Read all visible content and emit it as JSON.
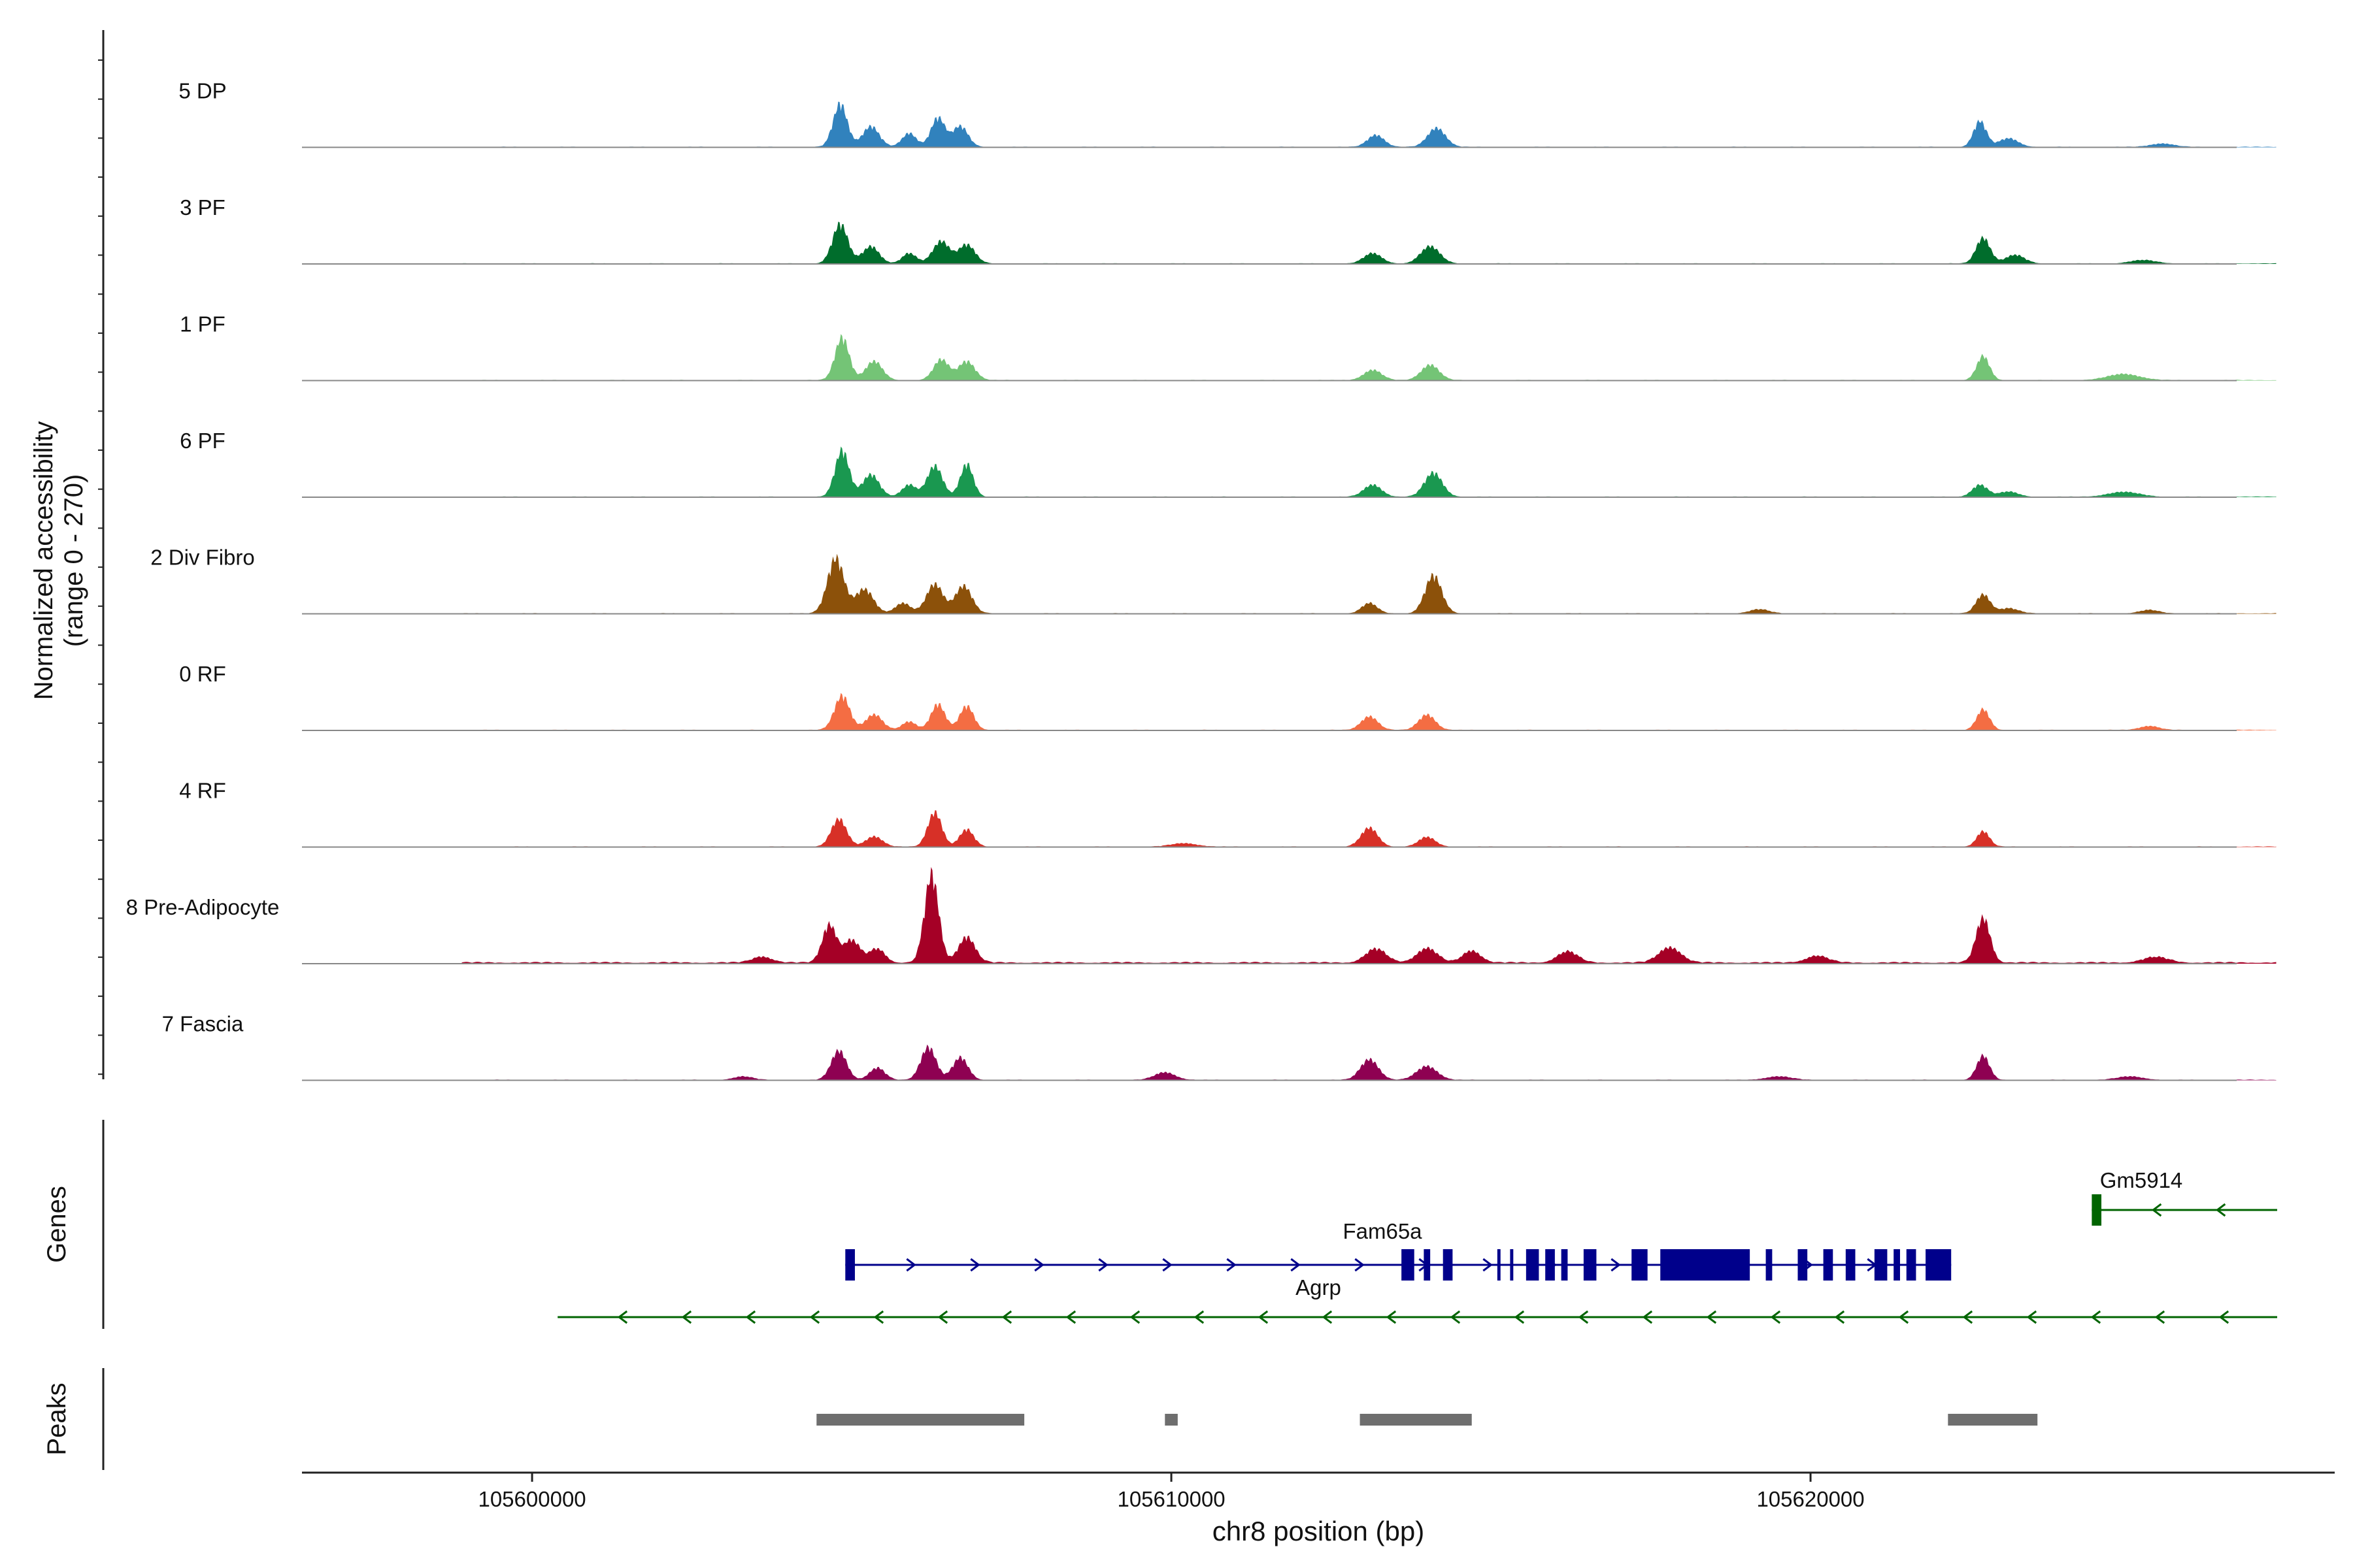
{
  "chart_data": {
    "type": "area",
    "title": "",
    "xlabel": "chr8 position (bp)",
    "ylabel_line1": "Normalized accessibility",
    "ylabel_line2": "(range 0 - 270)",
    "ylim": [
      0,
      270
    ],
    "xlim": [
      105596400,
      105628200
    ],
    "x_ticks": [
      105600000,
      105610000,
      105620000
    ],
    "x_tick_labels": [
      "105600000",
      "105610000",
      "105620000"
    ],
    "region_start": 105598900,
    "region_end": 105627300,
    "tracks": [
      {
        "name": "5 DP",
        "color": "#3182BD",
        "background": 2,
        "peaks": [
          [
            105604820,
            125,
            110
          ],
          [
            105605300,
            60,
            130
          ],
          [
            105605900,
            40,
            110
          ],
          [
            105606350,
            85,
            110
          ],
          [
            105606700,
            60,
            120
          ],
          [
            105613200,
            35,
            130
          ],
          [
            105614150,
            55,
            140
          ],
          [
            105622650,
            75,
            100
          ],
          [
            105623100,
            25,
            150
          ],
          [
            105625500,
            10,
            180
          ]
        ]
      },
      {
        "name": "3 PF",
        "color": "#006D2C",
        "background": 2,
        "peaks": [
          [
            105604820,
            115,
            120
          ],
          [
            105605300,
            50,
            130
          ],
          [
            105605900,
            30,
            110
          ],
          [
            105606400,
            65,
            130
          ],
          [
            105606800,
            55,
            130
          ],
          [
            105613150,
            30,
            140
          ],
          [
            105614050,
            50,
            150
          ],
          [
            105622700,
            75,
            110
          ],
          [
            105623200,
            25,
            150
          ],
          [
            105625200,
            10,
            200
          ]
        ]
      },
      {
        "name": "1 PF",
        "color": "#74C476",
        "background": 2,
        "peaks": [
          [
            105604850,
            125,
            110
          ],
          [
            105605350,
            55,
            130
          ],
          [
            105606400,
            60,
            120
          ],
          [
            105606800,
            55,
            130
          ],
          [
            105613150,
            30,
            140
          ],
          [
            105614050,
            45,
            140
          ],
          [
            105622700,
            70,
            100
          ],
          [
            105624900,
            18,
            250
          ]
        ]
      },
      {
        "name": "6 PF",
        "color": "#1A9850",
        "background": 2,
        "peaks": [
          [
            105604850,
            135,
            110
          ],
          [
            105605300,
            65,
            130
          ],
          [
            105605900,
            35,
            110
          ],
          [
            105606300,
            90,
            120
          ],
          [
            105606800,
            95,
            100
          ],
          [
            105613150,
            35,
            140
          ],
          [
            105614100,
            70,
            140
          ],
          [
            105622650,
            35,
            120
          ],
          [
            105623100,
            15,
            150
          ],
          [
            105624900,
            14,
            250
          ]
        ]
      },
      {
        "name": "2 Div Fibro",
        "color": "#8C510A",
        "background": 2,
        "peaks": [
          [
            105604750,
            160,
            130
          ],
          [
            105605200,
            70,
            140
          ],
          [
            105605800,
            30,
            120
          ],
          [
            105606300,
            85,
            130
          ],
          [
            105606750,
            80,
            130
          ],
          [
            105613100,
            30,
            120
          ],
          [
            105614100,
            110,
            130
          ],
          [
            105622700,
            55,
            110
          ],
          [
            105623100,
            15,
            150
          ],
          [
            105619200,
            12,
            150
          ],
          [
            105625300,
            10,
            150
          ]
        ]
      },
      {
        "name": "0 RF",
        "color": "#F46D43",
        "background": 2,
        "peaks": [
          [
            105604850,
            100,
            120
          ],
          [
            105605350,
            45,
            130
          ],
          [
            105605900,
            25,
            110
          ],
          [
            105606350,
            75,
            110
          ],
          [
            105606800,
            70,
            110
          ],
          [
            105613100,
            40,
            130
          ],
          [
            105614000,
            45,
            130
          ],
          [
            105622700,
            60,
            100
          ],
          [
            105625300,
            12,
            150
          ]
        ]
      },
      {
        "name": "4 RF",
        "color": "#D73027",
        "background": 2,
        "peaks": [
          [
            105604800,
            80,
            120
          ],
          [
            105605350,
            30,
            130
          ],
          [
            105606300,
            100,
            110
          ],
          [
            105606800,
            50,
            110
          ],
          [
            105613100,
            55,
            130
          ],
          [
            105614000,
            28,
            130
          ],
          [
            105622700,
            45,
            100
          ],
          [
            105610200,
            10,
            200
          ]
        ]
      },
      {
        "name": "8 Pre-Adipocyte",
        "color": "#A50026",
        "background": 5,
        "peaks": [
          [
            105604650,
            110,
            110
          ],
          [
            105605000,
            65,
            130
          ],
          [
            105605400,
            40,
            120
          ],
          [
            105606250,
            255,
            110
          ],
          [
            105606800,
            75,
            130
          ],
          [
            105603600,
            18,
            150
          ],
          [
            105613200,
            40,
            160
          ],
          [
            105614000,
            42,
            160
          ],
          [
            105614700,
            35,
            140
          ],
          [
            105616200,
            32,
            160
          ],
          [
            105617800,
            45,
            170
          ],
          [
            105620100,
            20,
            170
          ],
          [
            105622700,
            130,
            110
          ],
          [
            105625400,
            16,
            200
          ]
        ]
      },
      {
        "name": "7 Fascia",
        "color": "#8E0152",
        "background": 2,
        "peaks": [
          [
            105604800,
            85,
            120
          ],
          [
            105605400,
            35,
            120
          ],
          [
            105606200,
            95,
            120
          ],
          [
            105606700,
            65,
            120
          ],
          [
            105609900,
            22,
            160
          ],
          [
            105613100,
            60,
            140
          ],
          [
            105614000,
            40,
            160
          ],
          [
            105622700,
            70,
            100
          ],
          [
            105603300,
            10,
            150
          ],
          [
            105619500,
            10,
            200
          ],
          [
            105625000,
            10,
            200
          ]
        ]
      }
    ],
    "genes_label": "Genes",
    "genes": [
      {
        "name": "Gm5914",
        "color": "#006400",
        "strand": "-",
        "start": 105624400,
        "end": 105627300,
        "row": 0,
        "exons": [
          [
            105624400,
            105624550
          ]
        ]
      },
      {
        "name": "Fam65a",
        "color": "#00008B",
        "strand": "+",
        "start": 105604900,
        "end": 105622200,
        "row": 1,
        "exons": [
          [
            105604900,
            105605050
          ],
          [
            105613600,
            105613800
          ],
          [
            105613950,
            105614050
          ],
          [
            105614250,
            105614400
          ],
          [
            105615100,
            105615150
          ],
          [
            105615300,
            105615350
          ],
          [
            105615550,
            105615750
          ],
          [
            105615850,
            105616000
          ],
          [
            105616100,
            105616200
          ],
          [
            105616450,
            105616650
          ],
          [
            105617200,
            105617450
          ],
          [
            105617650,
            105619050
          ],
          [
            105619300,
            105619400
          ],
          [
            105619800,
            105619950
          ],
          [
            105620200,
            105620350
          ],
          [
            105620550,
            105620700
          ],
          [
            105621000,
            105621200
          ],
          [
            105621300,
            105621400
          ],
          [
            105621500,
            105621650
          ],
          [
            105621800,
            105622200
          ]
        ]
      },
      {
        "name": "Agrp",
        "color": "#006400",
        "strand": "-",
        "start": 105600400,
        "end": 105627300,
        "row": 2,
        "exons": []
      }
    ],
    "peaks_label": "Peaks",
    "peak_regions": [
      [
        105604450,
        105607700
      ],
      [
        105609900,
        105610100
      ],
      [
        105612950,
        105614700
      ],
      [
        105622150,
        105623550
      ]
    ]
  }
}
